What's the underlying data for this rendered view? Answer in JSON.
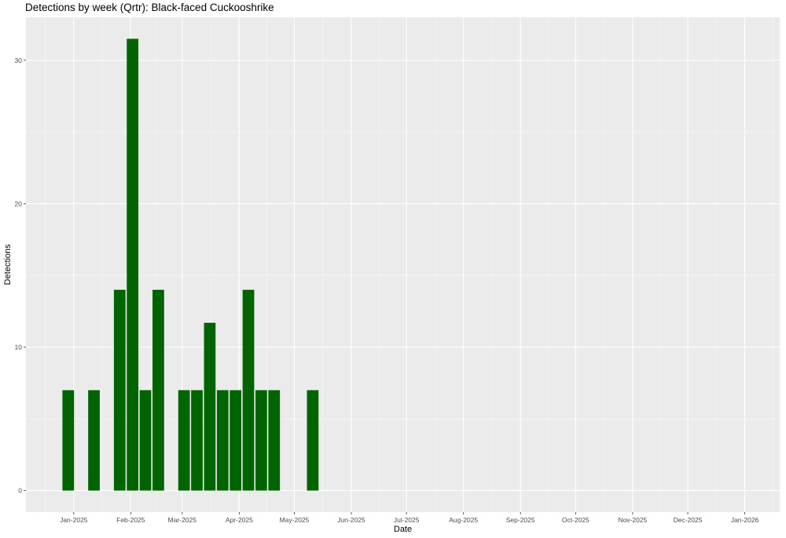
{
  "chart_data": {
    "type": "bar",
    "title": "Detections by week (Qrtr): Black-faced Cuckooshrike",
    "xlabel": "Date",
    "ylabel": "Detections",
    "x_type": "date",
    "xlim": [
      "2024-12-06",
      "2026-01-20"
    ],
    "ylim": [
      -1.5,
      33
    ],
    "y_ticks": [
      0,
      10,
      20,
      30
    ],
    "x_ticks": [
      {
        "date": "2025-01-01",
        "label": "Jan-2025"
      },
      {
        "date": "2025-02-01",
        "label": "Feb-2025"
      },
      {
        "date": "2025-03-01",
        "label": "Mar-2025"
      },
      {
        "date": "2025-04-01",
        "label": "Apr-2025"
      },
      {
        "date": "2025-05-01",
        "label": "May-2025"
      },
      {
        "date": "2025-06-01",
        "label": "Jun-2025"
      },
      {
        "date": "2025-07-01",
        "label": "Jul-2025"
      },
      {
        "date": "2025-08-01",
        "label": "Aug-2025"
      },
      {
        "date": "2025-09-01",
        "label": "Sep-2025"
      },
      {
        "date": "2025-10-01",
        "label": "Oct-2025"
      },
      {
        "date": "2025-11-01",
        "label": "Nov-2025"
      },
      {
        "date": "2025-12-01",
        "label": "Dec-2025"
      },
      {
        "date": "2026-01-01",
        "label": "Jan-2026"
      }
    ],
    "bar_width_days": 6.3,
    "bars": [
      {
        "x": "2024-12-29",
        "y": 7
      },
      {
        "x": "2025-01-12",
        "y": 7
      },
      {
        "x": "2025-01-26",
        "y": 14
      },
      {
        "x": "2025-02-02",
        "y": 31.5
      },
      {
        "x": "2025-02-09",
        "y": 7
      },
      {
        "x": "2025-02-16",
        "y": 14
      },
      {
        "x": "2025-03-02",
        "y": 7
      },
      {
        "x": "2025-03-09",
        "y": 7
      },
      {
        "x": "2025-03-16",
        "y": 11.7
      },
      {
        "x": "2025-03-23",
        "y": 7
      },
      {
        "x": "2025-03-30",
        "y": 7
      },
      {
        "x": "2025-04-06",
        "y": 14
      },
      {
        "x": "2025-04-13",
        "y": 7
      },
      {
        "x": "2025-04-20",
        "y": 7
      },
      {
        "x": "2025-05-11",
        "y": 7
      }
    ],
    "colors": {
      "bar": "#006400",
      "panel": "#ebebeb",
      "grid_major": "#ffffff",
      "grid_minor": "#f5f5f5",
      "tick_text": "#4d4d4d",
      "tick_mark": "#333333"
    },
    "grid": true,
    "legend": "none"
  }
}
